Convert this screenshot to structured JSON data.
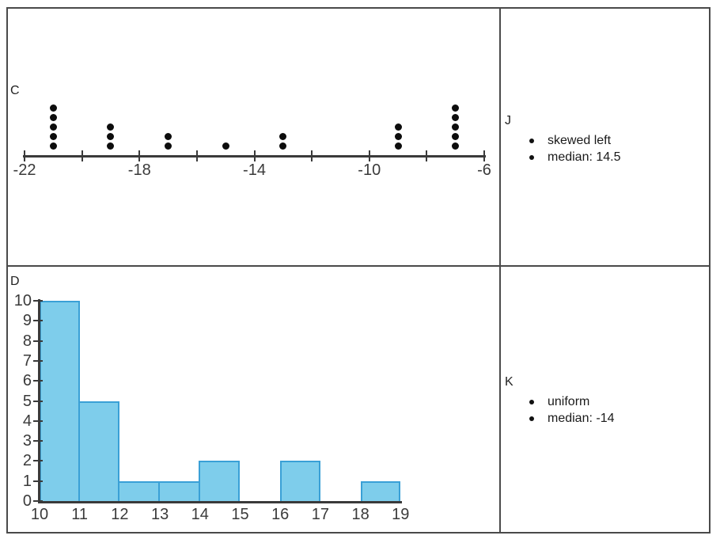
{
  "colors": {
    "table_border": "#4a4a4a",
    "axis": "#3a3a3a",
    "label_text": "#3a3a3a",
    "body_text": "#1a1a1a",
    "dot": "#0d0d0d",
    "bar_fill": "#7ecdeb",
    "bar_border": "#3aa0d6"
  },
  "cells": {
    "c": {
      "label": "C"
    },
    "d": {
      "label": "D"
    },
    "j": {
      "label": "J",
      "bullets": [
        "skewed left",
        "median: 14.5"
      ]
    },
    "k": {
      "label": "K",
      "bullets": [
        "uniform",
        "median: -14"
      ]
    }
  },
  "chart_data": [
    {
      "id": "dotplot-c",
      "type": "dotplot",
      "title": "C",
      "axis": {
        "min": -22,
        "max": -6,
        "tick_step": 2,
        "labeled_ticks": [
          -22,
          -18,
          -14,
          -10,
          -6
        ]
      },
      "points": [
        {
          "value": -21,
          "count": 5
        },
        {
          "value": -19,
          "count": 3
        },
        {
          "value": -17,
          "count": 2
        },
        {
          "value": -15,
          "count": 1
        },
        {
          "value": -13,
          "count": 2
        },
        {
          "value": -9,
          "count": 3
        },
        {
          "value": -7,
          "count": 5
        }
      ]
    },
    {
      "id": "histogram-d",
      "type": "histogram",
      "title": "D",
      "xlim": [
        10,
        19
      ],
      "ylim": [
        0,
        10
      ],
      "x_tick_step": 1,
      "y_tick_step": 1,
      "x_tick_labels": [
        "10",
        "11",
        "12",
        "13",
        "14",
        "15",
        "16",
        "17",
        "18",
        "19"
      ],
      "y_tick_labels": [
        "0",
        "1",
        "2",
        "3",
        "4",
        "5",
        "6",
        "7",
        "8",
        "9",
        "10"
      ],
      "bins": [
        {
          "start": 10,
          "end": 11,
          "count": 10
        },
        {
          "start": 11,
          "end": 12,
          "count": 5
        },
        {
          "start": 12,
          "end": 13,
          "count": 1
        },
        {
          "start": 13,
          "end": 14,
          "count": 1
        },
        {
          "start": 14,
          "end": 15,
          "count": 2
        },
        {
          "start": 15,
          "end": 16,
          "count": 0
        },
        {
          "start": 16,
          "end": 17,
          "count": 2
        },
        {
          "start": 17,
          "end": 18,
          "count": 0
        },
        {
          "start": 18,
          "end": 19,
          "count": 1
        }
      ]
    }
  ]
}
